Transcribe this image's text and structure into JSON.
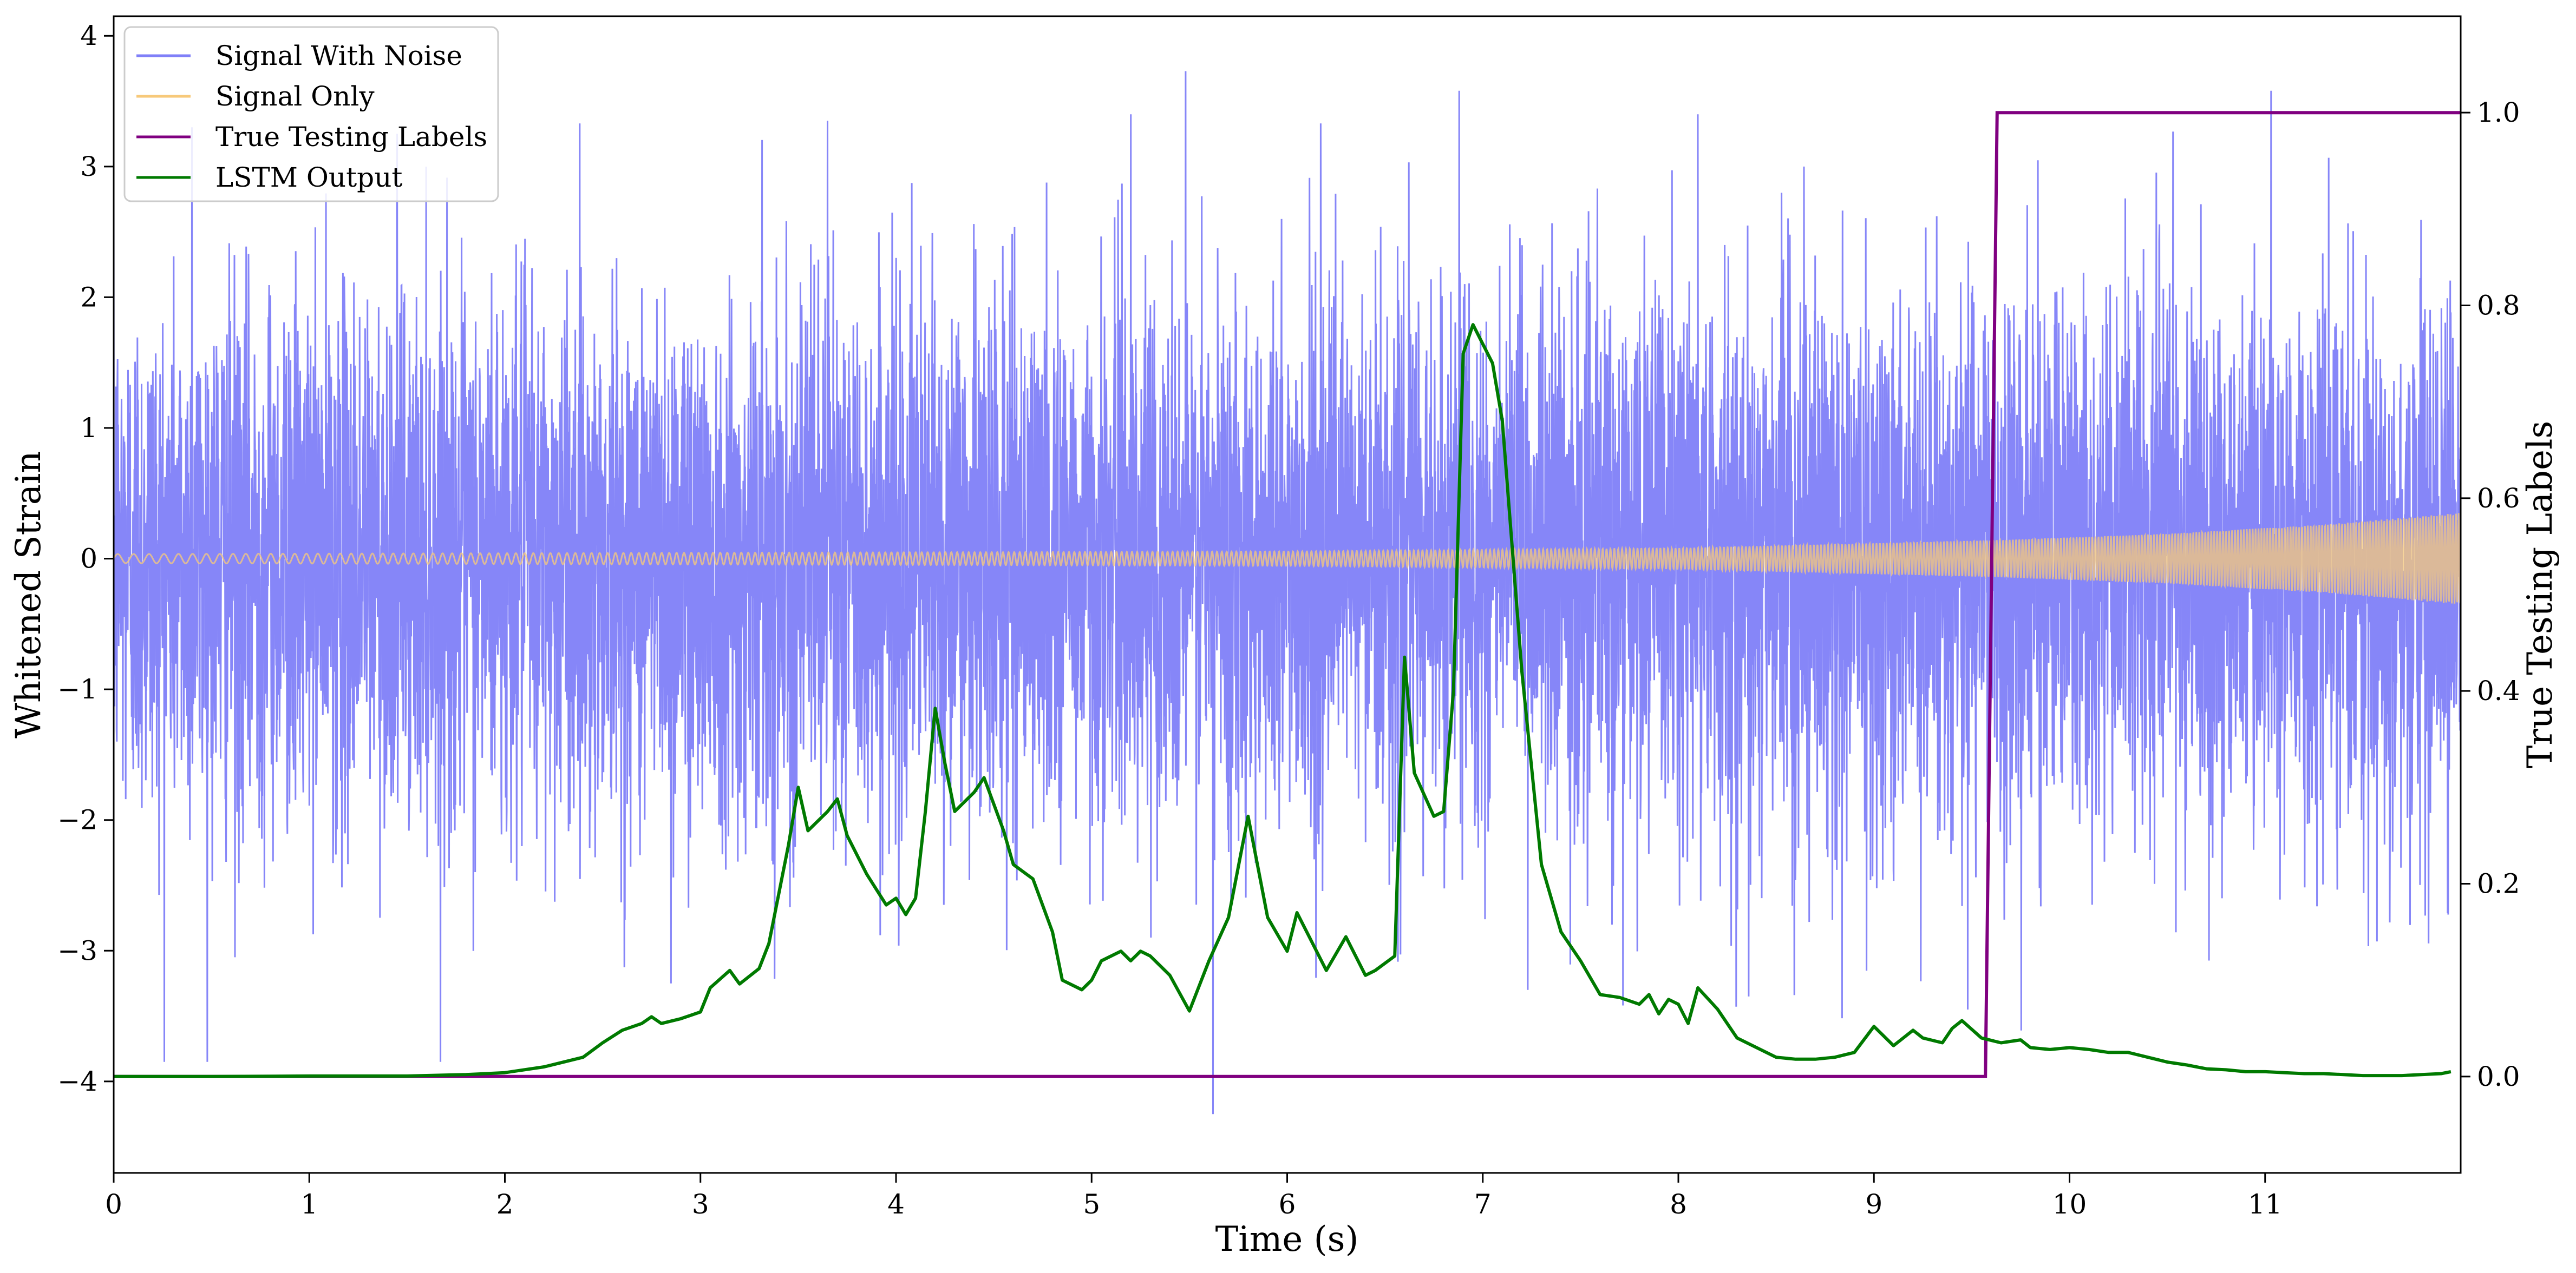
{
  "chart_data": {
    "type": "line",
    "xlabel": "Time (s)",
    "ylabel_left": "Whitened Strain",
    "ylabel_right": "True Testing Labels",
    "xlim": [
      0,
      12
    ],
    "ylim_left": [
      -4.7,
      4.15
    ],
    "ylim_right": [
      -0.1,
      1.1
    ],
    "x_ticks": [
      0,
      1,
      2,
      3,
      4,
      5,
      6,
      7,
      8,
      9,
      10,
      11
    ],
    "y_left_ticks": [
      -4,
      -3,
      -2,
      -1,
      0,
      1,
      2,
      3,
      4
    ],
    "y_right_ticks": [
      0.0,
      0.2,
      0.4,
      0.6,
      0.8,
      1.0
    ],
    "y_right_tick_labels": [
      "0.0",
      "0.2",
      "0.4",
      "0.6",
      "0.8",
      "1.0"
    ],
    "grid": false,
    "legend_position": "upper-left",
    "series": [
      {
        "name": "Signal With Noise",
        "axis": "left",
        "color": "#8080f8",
        "kind": "noise",
        "approx_std": 1.0,
        "min": -4.25,
        "max": 3.73,
        "spikes": [
          [
            0.4,
            3.3
          ],
          [
            1.45,
            3.25
          ],
          [
            3.65,
            3.35
          ],
          [
            5.2,
            3.4
          ],
          [
            5.48,
            3.73
          ],
          [
            6.88,
            3.58
          ],
          [
            8.1,
            3.4
          ],
          [
            11.03,
            3.58
          ],
          [
            5.62,
            -4.25
          ],
          [
            8.36,
            -3.35
          ],
          [
            7.23,
            -3.3
          ],
          [
            9.48,
            -3.45
          ],
          [
            2.85,
            -3.25
          ],
          [
            0.62,
            -3.05
          ]
        ]
      },
      {
        "name": "Signal Only",
        "axis": "left",
        "color": "#f7c97a",
        "kind": "chirp",
        "amplitude_start": 0.035,
        "amplitude_end": 0.35,
        "envelope_points": [
          [
            0,
            0.035
          ],
          [
            6,
            0.055
          ],
          [
            8,
            0.08
          ],
          [
            9.6,
            0.14
          ],
          [
            10.5,
            0.19
          ],
          [
            11.3,
            0.26
          ],
          [
            12,
            0.35
          ]
        ]
      },
      {
        "name": "True Testing Labels",
        "axis": "right",
        "color": "#800080",
        "x": [
          0,
          9.57,
          9.63,
          12
        ],
        "y": [
          0.0,
          0.0,
          1.0,
          1.0
        ]
      },
      {
        "name": "LSTM Output",
        "axis": "right",
        "color": "#007a00",
        "x": [
          0,
          0.5,
          1.0,
          1.5,
          1.8,
          2.0,
          2.2,
          2.4,
          2.5,
          2.6,
          2.7,
          2.75,
          2.8,
          2.9,
          3.0,
          3.05,
          3.15,
          3.2,
          3.3,
          3.35,
          3.45,
          3.5,
          3.55,
          3.65,
          3.7,
          3.75,
          3.85,
          3.95,
          4.0,
          4.05,
          4.1,
          4.15,
          4.2,
          4.25,
          4.3,
          4.4,
          4.45,
          4.55,
          4.6,
          4.7,
          4.8,
          4.85,
          4.95,
          5.0,
          5.05,
          5.15,
          5.2,
          5.25,
          5.3,
          5.4,
          5.5,
          5.6,
          5.7,
          5.8,
          5.9,
          6.0,
          6.05,
          6.2,
          6.3,
          6.4,
          6.45,
          6.55,
          6.6,
          6.65,
          6.75,
          6.8,
          6.85,
          6.9,
          6.95,
          7.05,
          7.1,
          7.2,
          7.3,
          7.4,
          7.5,
          7.6,
          7.7,
          7.8,
          7.85,
          7.9,
          7.95,
          8.0,
          8.05,
          8.1,
          8.2,
          8.3,
          8.45,
          8.5,
          8.6,
          8.7,
          8.8,
          8.9,
          9.0,
          9.1,
          9.2,
          9.25,
          9.35,
          9.4,
          9.45,
          9.55,
          9.65,
          9.75,
          9.8,
          9.9,
          10.0,
          10.1,
          10.2,
          10.3,
          10.4,
          10.5,
          10.6,
          10.7,
          10.8,
          10.9,
          11.0,
          11.1,
          11.2,
          11.3,
          11.4,
          11.5,
          11.6,
          11.7,
          11.8,
          11.9,
          11.95
        ],
        "y": [
          0.0,
          0.0,
          0.0005,
          0.0005,
          0.002,
          0.004,
          0.01,
          0.02,
          0.035,
          0.048,
          0.055,
          0.062,
          0.055,
          0.06,
          0.067,
          0.092,
          0.11,
          0.096,
          0.112,
          0.138,
          0.24,
          0.3,
          0.255,
          0.275,
          0.288,
          0.25,
          0.21,
          0.178,
          0.185,
          0.168,
          0.185,
          0.275,
          0.382,
          0.325,
          0.275,
          0.295,
          0.31,
          0.255,
          0.22,
          0.205,
          0.15,
          0.1,
          0.09,
          0.1,
          0.12,
          0.13,
          0.12,
          0.13,
          0.125,
          0.105,
          0.068,
          0.12,
          0.165,
          0.27,
          0.165,
          0.13,
          0.17,
          0.11,
          0.145,
          0.105,
          0.11,
          0.125,
          0.435,
          0.315,
          0.27,
          0.275,
          0.4,
          0.75,
          0.78,
          0.74,
          0.68,
          0.42,
          0.22,
          0.15,
          0.12,
          0.085,
          0.082,
          0.075,
          0.085,
          0.065,
          0.08,
          0.075,
          0.055,
          0.092,
          0.07,
          0.04,
          0.025,
          0.02,
          0.018,
          0.018,
          0.02,
          0.025,
          0.052,
          0.032,
          0.048,
          0.04,
          0.035,
          0.05,
          0.058,
          0.04,
          0.035,
          0.038,
          0.03,
          0.028,
          0.03,
          0.028,
          0.025,
          0.025,
          0.02,
          0.015,
          0.012,
          0.008,
          0.007,
          0.005,
          0.005,
          0.004,
          0.003,
          0.003,
          0.002,
          0.001,
          0.001,
          0.001,
          0.002,
          0.003,
          0.005
        ]
      }
    ]
  }
}
